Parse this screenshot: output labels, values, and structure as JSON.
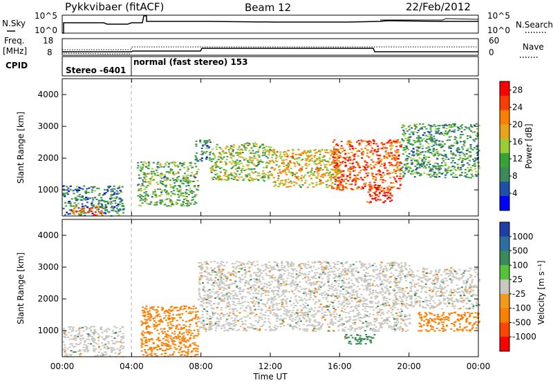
{
  "header": {
    "station": "Pykkvibaer (fitACF)",
    "beam": "Beam 12",
    "date": "22/Feb/2012"
  },
  "noise_panel": {
    "left_label": "N.Sky",
    "left_ticks": [
      "10^5",
      "10^0"
    ],
    "right_label": "N.Search",
    "right_ticks": [
      "10^5",
      "10^0"
    ]
  },
  "freq_panel": {
    "left_label_line1": "Freq.",
    "left_label_line2": "[MHz]",
    "left_ticks": [
      "18",
      "8"
    ],
    "right_label": "Nave",
    "right_ticks": [
      "60",
      "0"
    ]
  },
  "cpid_panel": {
    "label": "CPID",
    "modes": [
      "Stereo -6401",
      "normal (fast stereo) 153"
    ]
  },
  "colors": {
    "power": [
      "#0000ff",
      "#1f4fa8",
      "#3a8a5a",
      "#36a336",
      "#9acd32",
      "#e8a317",
      "#ff7f00",
      "#ff3c00",
      "#ff0000"
    ],
    "velocity": [
      "#1f3fa8",
      "#2e6e9e",
      "#3a8a5a",
      "#55c33a",
      "#c8c8c0",
      "#f29b1a",
      "#ff7f00",
      "#ff4500",
      "#ff0000"
    ]
  },
  "chart_data": [
    {
      "type": "heatmap",
      "panel": "power",
      "ylabel": "Slant Range [km]",
      "xlabel": "",
      "xlim": [
        "00:00",
        "24:00"
      ],
      "ylim": [
        180,
        4500
      ],
      "x_ticks": [
        "00:00",
        "04:00",
        "08:00",
        "12:00",
        "16:00",
        "20:00",
        "00:00"
      ],
      "y_ticks": [
        1000,
        2000,
        3000,
        4000
      ],
      "colorbar": {
        "label": "Power [dB]",
        "ticks": [
          4,
          8,
          12,
          16,
          20,
          24,
          28
        ],
        "range": [
          0,
          30
        ]
      },
      "features": [
        {
          "time_h": [
            0.0,
            3.5
          ],
          "range_km": [
            200,
            1150
          ],
          "value": 8
        },
        {
          "time_h": [
            0.5,
            2.3
          ],
          "range_km": [
            220,
            520
          ],
          "value": 22
        },
        {
          "time_h": [
            4.3,
            7.8
          ],
          "range_km": [
            500,
            1900
          ],
          "value": 12
        },
        {
          "time_h": [
            7.6,
            8.5
          ],
          "range_km": [
            1900,
            2600
          ],
          "value": 8
        },
        {
          "time_h": [
            8.5,
            12.0
          ],
          "range_km": [
            1300,
            2500
          ],
          "value": 14
        },
        {
          "time_h": [
            12.0,
            16.0
          ],
          "range_km": [
            1100,
            2300
          ],
          "value": 18
        },
        {
          "time_h": [
            15.5,
            19.5
          ],
          "range_km": [
            1000,
            2600
          ],
          "value": 24
        },
        {
          "time_h": [
            17.5,
            19.0
          ],
          "range_km": [
            600,
            1100
          ],
          "value": 28
        },
        {
          "time_h": [
            19.5,
            24.0
          ],
          "range_km": [
            1400,
            3100
          ],
          "value": 10
        }
      ]
    },
    {
      "type": "heatmap",
      "panel": "velocity",
      "ylabel": "Slant Range [km]",
      "xlabel": "Time UT",
      "xlim": [
        "00:00",
        "24:00"
      ],
      "ylim": [
        180,
        4500
      ],
      "x_ticks": [
        "00:00",
        "04:00",
        "08:00",
        "12:00",
        "16:00",
        "20:00",
        "00:00"
      ],
      "y_ticks": [
        1000,
        2000,
        3000,
        4000
      ],
      "colorbar": {
        "label": "Velocity [m s⁻¹]",
        "ticks": [
          1000,
          500,
          100,
          25,
          -25,
          -100,
          -500,
          -1000
        ]
      },
      "features": [
        {
          "time_h": [
            0.0,
            3.5
          ],
          "range_km": [
            200,
            1150
          ],
          "value": 0
        },
        {
          "time_h": [
            4.5,
            7.8
          ],
          "range_km": [
            200,
            1800
          ],
          "value": -300
        },
        {
          "time_h": [
            7.8,
            20.0
          ],
          "range_km": [
            1000,
            3200
          ],
          "value": 0
        },
        {
          "time_h": [
            16.0,
            18.0
          ],
          "range_km": [
            600,
            900
          ],
          "value": 100
        },
        {
          "time_h": [
            20.5,
            24.0
          ],
          "range_km": [
            1000,
            1600
          ],
          "value": -300
        },
        {
          "time_h": [
            20.0,
            24.0
          ],
          "range_km": [
            1700,
            3000
          ],
          "value": 0
        }
      ]
    }
  ]
}
